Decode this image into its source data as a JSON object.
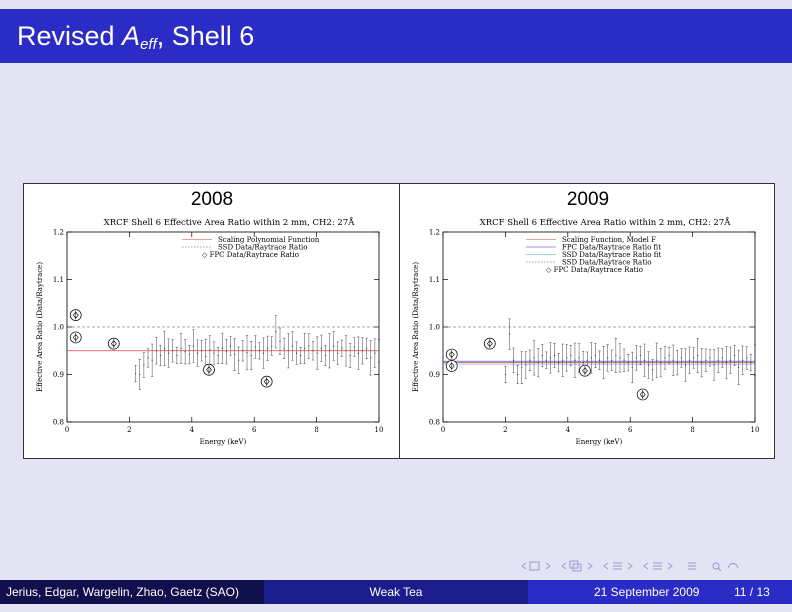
{
  "slide": {
    "title_prefix": "Revised ",
    "title_var": "A",
    "title_sub": "eff",
    "title_suffix": ", Shell 6"
  },
  "footer": {
    "authors": "Jerius, Edgar, Wargelin, Zhao, Gaetz  (SAO)",
    "talk": "Weak Tea",
    "date": "21 September 2009",
    "page": "11 / 13"
  },
  "colors": {
    "titlebar": "#2b2bc6",
    "background": "#e4e4f4",
    "red": "#e04040",
    "blue": "#3030d0",
    "cyan": "#40b0d0"
  },
  "chart_data": [
    {
      "type": "scatter",
      "year": "2008",
      "title": "XRCF Shell 6 Effective Area Ratio within 2 mm, CH2: 27Å",
      "xlabel": "Energy (keV)",
      "ylabel": "Effective Area Ratio (Data/Raytrace)",
      "xlim": [
        0,
        10
      ],
      "ylim": [
        0.8,
        1.2
      ],
      "xticks": [
        "0",
        "2",
        "4",
        "6",
        "8",
        "10"
      ],
      "yticks": [
        "0.8",
        "0.9",
        "1.0",
        "1.1",
        "1.2"
      ],
      "reference_line": 1.0,
      "legend_position": "top-right",
      "legend": [
        "Scaling Polynomial Function",
        "SSD Data/Raytrace Ratio",
        "◇ FPC Data/Raytrace Ratio"
      ],
      "model_level": 0.95,
      "fpc_points": [
        {
          "x": 0.28,
          "y": 1.025
        },
        {
          "x": 0.28,
          "y": 0.978
        },
        {
          "x": 1.5,
          "y": 0.965
        },
        {
          "x": 4.55,
          "y": 0.91
        },
        {
          "x": 6.4,
          "y": 0.885
        }
      ],
      "ssd": {
        "x_start": 2.2,
        "x_end": 10,
        "count": 60,
        "base": 0.945,
        "err": 0.025,
        "y": [
          0.902,
          0.9,
          0.92,
          0.935,
          0.93,
          0.95,
          0.94,
          0.955,
          0.945,
          0.95,
          0.94,
          0.955,
          0.948,
          0.942,
          0.96,
          0.945,
          0.95,
          0.938,
          0.952,
          0.945,
          0.94,
          0.955,
          0.948,
          0.96,
          0.942,
          0.93,
          0.95,
          0.946,
          0.94,
          0.958,
          0.95,
          0.945,
          0.955,
          0.96,
          0.99,
          0.97,
          0.955,
          0.95,
          0.96,
          0.945,
          0.94,
          0.955,
          0.96,
          0.95,
          0.945,
          0.955,
          0.94,
          0.95,
          0.96,
          0.945,
          0.955,
          0.95,
          0.94,
          0.958,
          0.945,
          0.95,
          0.955,
          0.935,
          0.945,
          0.95
        ]
      }
    },
    {
      "type": "scatter",
      "year": "2009",
      "title": "XRCF Shell 6 Effective Area Ratio within 2 mm, CH2: 27Å",
      "xlabel": "Energy (keV)",
      "ylabel": "Effective Area Ratio (Data/Raytrace)",
      "xlim": [
        0,
        10
      ],
      "ylim": [
        0.8,
        1.2
      ],
      "xticks": [
        "0",
        "2",
        "4",
        "6",
        "8",
        "10"
      ],
      "yticks": [
        "0.8",
        "0.9",
        "1.0",
        "1.1",
        "1.2"
      ],
      "reference_line": 1.0,
      "legend_position": "top-right",
      "legend": [
        "Scaling Function, Model F",
        "FPC Data/Raytrace Ratio fit",
        "SSD Data/Raytrace Ratio fit",
        "SSD Data/Raytrace Ratio",
        "◇ FPC Data/Raytrace Ratio"
      ],
      "model_level": 0.925,
      "fpc_points": [
        {
          "x": 0.28,
          "y": 0.942
        },
        {
          "x": 0.28,
          "y": 0.918
        },
        {
          "x": 1.5,
          "y": 0.965
        },
        {
          "x": 4.55,
          "y": 0.908
        },
        {
          "x": 6.4,
          "y": 0.858
        }
      ],
      "ssd": {
        "x_start": 2.0,
        "x_end": 10,
        "count": 62,
        "base": 0.93,
        "err": 0.025,
        "y": [
          0.9,
          0.985,
          0.93,
          0.9,
          0.915,
          0.92,
          0.93,
          0.935,
          0.925,
          0.94,
          0.93,
          0.935,
          0.94,
          0.925,
          0.93,
          0.935,
          0.94,
          0.93,
          0.935,
          0.925,
          0.93,
          0.935,
          0.94,
          0.93,
          0.925,
          0.935,
          0.93,
          0.94,
          0.935,
          0.93,
          0.925,
          0.915,
          0.935,
          0.94,
          0.93,
          0.92,
          0.91,
          0.93,
          0.925,
          0.935,
          0.94,
          0.93,
          0.925,
          0.935,
          0.92,
          0.93,
          0.935,
          0.94,
          0.925,
          0.93,
          0.935,
          0.92,
          0.93,
          0.935,
          0.925,
          0.93,
          0.94,
          0.915,
          0.93,
          0.935,
          0.925,
          0.93
        ]
      }
    }
  ]
}
